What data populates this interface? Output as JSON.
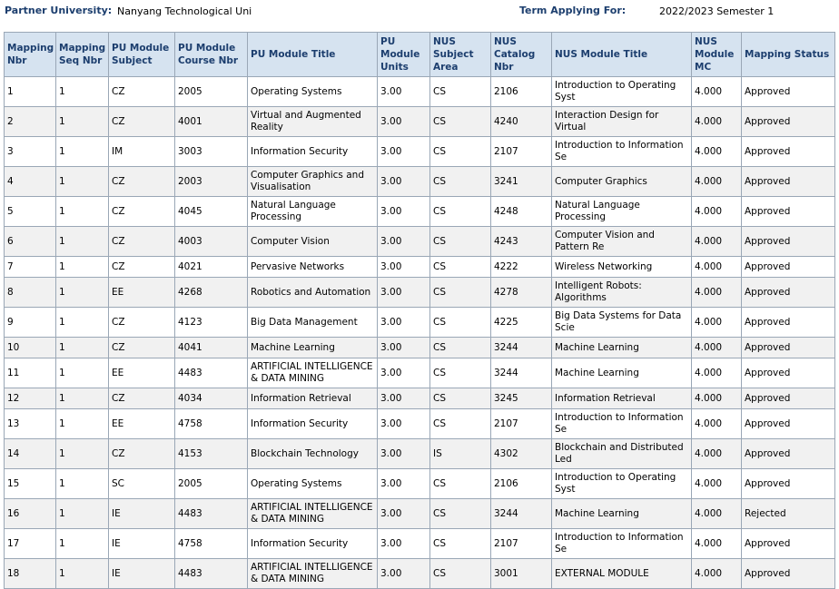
{
  "header": {
    "partner_label": "Partner University:",
    "partner_value": "Nanyang Technological Uni",
    "term_label": "Term Applying For:",
    "term_value": "2022/2023 Semester 1"
  },
  "columns": [
    "Mapping Nbr",
    "Mapping Seq Nbr",
    "PU Module Subject",
    "PU Module Course Nbr",
    "PU Module Title",
    "PU Module Units",
    "NUS Subject Area",
    "NUS Catalog Nbr",
    "NUS Module Title",
    "NUS Module MC",
    "Mapping Status"
  ],
  "rows": [
    {
      "nbr": "1",
      "seq": "1",
      "subj": "CZ",
      "course": "2005",
      "title": "Operating Systems",
      "units": "3.00",
      "area": "CS",
      "cat": "2106",
      "nus_title": "Introduction to Operating Syst",
      "mc": "4.000",
      "status": "Approved"
    },
    {
      "nbr": "2",
      "seq": "1",
      "subj": "CZ",
      "course": "4001",
      "title": "Virtual and Augmented Reality",
      "units": "3.00",
      "area": "CS",
      "cat": "4240",
      "nus_title": "Interaction Design for Virtual",
      "mc": "4.000",
      "status": "Approved"
    },
    {
      "nbr": "3",
      "seq": "1",
      "subj": "IM",
      "course": "3003",
      "title": "Information Security",
      "units": "3.00",
      "area": "CS",
      "cat": "2107",
      "nus_title": "Introduction to Information Se",
      "mc": "4.000",
      "status": "Approved"
    },
    {
      "nbr": "4",
      "seq": "1",
      "subj": "CZ",
      "course": "2003",
      "title": "Computer Graphics and Visualisation",
      "units": "3.00",
      "area": "CS",
      "cat": "3241",
      "nus_title": "Computer Graphics",
      "mc": "4.000",
      "status": "Approved"
    },
    {
      "nbr": "5",
      "seq": "1",
      "subj": "CZ",
      "course": "4045",
      "title": "Natural Language Processing",
      "units": "3.00",
      "area": "CS",
      "cat": "4248",
      "nus_title": "Natural Language Processing",
      "mc": "4.000",
      "status": "Approved"
    },
    {
      "nbr": "6",
      "seq": "1",
      "subj": "CZ",
      "course": "4003",
      "title": "Computer Vision",
      "units": "3.00",
      "area": "CS",
      "cat": "4243",
      "nus_title": "Computer Vision and Pattern Re",
      "mc": "4.000",
      "status": "Approved"
    },
    {
      "nbr": "7",
      "seq": "1",
      "subj": "CZ",
      "course": "4021",
      "title": "Pervasive Networks",
      "units": "3.00",
      "area": "CS",
      "cat": "4222",
      "nus_title": "Wireless Networking",
      "mc": "4.000",
      "status": "Approved"
    },
    {
      "nbr": "8",
      "seq": "1",
      "subj": "EE",
      "course": "4268",
      "title": "Robotics and Automation",
      "units": "3.00",
      "area": "CS",
      "cat": "4278",
      "nus_title": "Intelligent Robots: Algorithms",
      "mc": "4.000",
      "status": "Approved"
    },
    {
      "nbr": "9",
      "seq": "1",
      "subj": "CZ",
      "course": "4123",
      "title": "Big Data Management",
      "units": "3.00",
      "area": "CS",
      "cat": "4225",
      "nus_title": "Big Data Systems for Data Scie",
      "mc": "4.000",
      "status": "Approved"
    },
    {
      "nbr": "10",
      "seq": "1",
      "subj": "CZ",
      "course": "4041",
      "title": "Machine Learning",
      "units": "3.00",
      "area": "CS",
      "cat": "3244",
      "nus_title": "Machine Learning",
      "mc": "4.000",
      "status": "Approved"
    },
    {
      "nbr": "11",
      "seq": "1",
      "subj": "EE",
      "course": "4483",
      "title": "ARTIFICIAL INTELLIGENCE & DATA MINING",
      "units": "3.00",
      "area": "CS",
      "cat": "3244",
      "nus_title": "Machine Learning",
      "mc": "4.000",
      "status": "Approved"
    },
    {
      "nbr": "12",
      "seq": "1",
      "subj": "CZ",
      "course": "4034",
      "title": "Information Retrieval",
      "units": "3.00",
      "area": "CS",
      "cat": "3245",
      "nus_title": "Information Retrieval",
      "mc": "4.000",
      "status": "Approved"
    },
    {
      "nbr": "13",
      "seq": "1",
      "subj": "EE",
      "course": "4758",
      "title": "Information Security",
      "units": "3.00",
      "area": "CS",
      "cat": "2107",
      "nus_title": "Introduction to Information Se",
      "mc": "4.000",
      "status": "Approved"
    },
    {
      "nbr": "14",
      "seq": "1",
      "subj": "CZ",
      "course": "4153",
      "title": "Blockchain Technology",
      "units": "3.00",
      "area": "IS",
      "cat": "4302",
      "nus_title": "Blockchain and Distributed Led",
      "mc": "4.000",
      "status": "Approved"
    },
    {
      "nbr": "15",
      "seq": "1",
      "subj": "SC",
      "course": "2005",
      "title": "Operating Systems",
      "units": "3.00",
      "area": "CS",
      "cat": "2106",
      "nus_title": "Introduction to Operating Syst",
      "mc": "4.000",
      "status": "Approved"
    },
    {
      "nbr": "16",
      "seq": "1",
      "subj": "IE",
      "course": "4483",
      "title": "ARTIFICIAL INTELLIGENCE & DATA MINING",
      "units": "3.00",
      "area": "CS",
      "cat": "3244",
      "nus_title": "Machine Learning",
      "mc": "4.000",
      "status": "Rejected"
    },
    {
      "nbr": "17",
      "seq": "1",
      "subj": "IE",
      "course": "4758",
      "title": "Information Security",
      "units": "3.00",
      "area": "CS",
      "cat": "2107",
      "nus_title": "Introduction to Information Se",
      "mc": "4.000",
      "status": "Approved"
    },
    {
      "nbr": "18",
      "seq": "1",
      "subj": "IE",
      "course": "4483",
      "title": "ARTIFICIAL INTELLIGENCE & DATA MINING",
      "units": "3.00",
      "area": "CS",
      "cat": "3001",
      "nus_title": "EXTERNAL MODULE",
      "mc": "4.000",
      "status": "Approved"
    }
  ]
}
